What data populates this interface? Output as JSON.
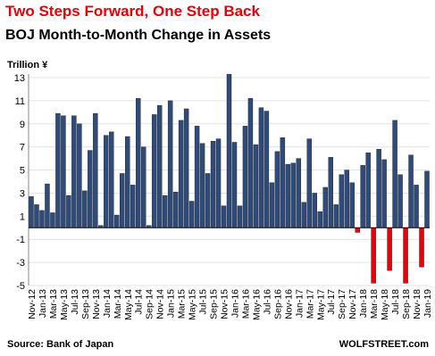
{
  "chart_data": {
    "type": "bar",
    "title": "Two Steps Forward, One Step Back",
    "subtitle": "BOJ Month-to-Month Change in Assets",
    "y_label": "Trillion ¥",
    "source": "Source: Bank of Japan",
    "credit": "WOLFSTREET.com",
    "categories": [
      "Nov-12",
      null,
      "Jan-13",
      null,
      "Mar-13",
      null,
      "May-13",
      null,
      "Jul-13",
      null,
      "Sep-13",
      null,
      "Nov-13",
      null,
      "Jan-14",
      null,
      "Mar-14",
      null,
      "May-14",
      null,
      "Jul-14",
      null,
      "Sep-14",
      null,
      "Nov-14",
      null,
      "Jan-15",
      null,
      "Mar-15",
      null,
      "May-15",
      null,
      "Jul-15",
      null,
      "Sep-15",
      null,
      "Nov-15",
      null,
      "Jan-16",
      null,
      "Mar-16",
      null,
      "May-16",
      null,
      "Jul-16",
      null,
      "Sep-16",
      null,
      "Nov-16",
      null,
      "Jan-17",
      null,
      "Mar-17",
      null,
      "May-17",
      null,
      "Jul-17",
      null,
      "Sep-17",
      null,
      "Nov-17",
      null,
      "Jan-18",
      null,
      "Mar-18",
      null,
      "May-18",
      null,
      "Jul-18",
      null,
      "Sep-18",
      null,
      "Nov-18",
      null,
      "Jan-19"
    ],
    "values": [
      2.7,
      2.0,
      1.5,
      3.8,
      1.3,
      9.9,
      9.7,
      2.8,
      9.7,
      9.0,
      3.2,
      6.7,
      9.9,
      0.2,
      8.0,
      8.3,
      1.1,
      4.7,
      7.9,
      3.7,
      11.2,
      7.0,
      0.2,
      9.8,
      10.6,
      2.8,
      11.0,
      3.1,
      9.3,
      10.3,
      2.3,
      8.8,
      7.3,
      4.7,
      7.5,
      7.7,
      1.9,
      13.3,
      7.4,
      1.9,
      8.8,
      11.2,
      7.2,
      10.4,
      10.1,
      3.9,
      6.6,
      7.8,
      5.5,
      5.6,
      6.0,
      2.2,
      7.7,
      3.0,
      1.4,
      3.5,
      6.1,
      2.0,
      4.6,
      5.0,
      3.9,
      -0.4,
      5.4,
      6.5,
      -4.8,
      6.8,
      5.9,
      -3.7,
      9.3,
      4.6,
      -4.8,
      6.3,
      3.7,
      -3.4,
      4.9
    ],
    "color": "#2f4b7c",
    "negative_color": "#e8000b",
    "ylim": [
      -5,
      13
    ],
    "yticks": [
      -5,
      -3,
      -1,
      1,
      3,
      5,
      7,
      9,
      11,
      13
    ],
    "grid": true
  }
}
